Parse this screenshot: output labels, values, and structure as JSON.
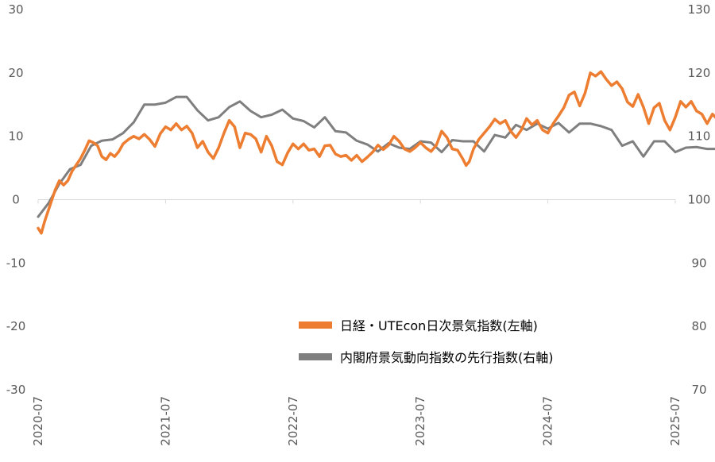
{
  "chart_data": {
    "type": "line",
    "title": "",
    "x_tick_labels": [
      "2020-07",
      "2021-07",
      "2022-07",
      "2023-07",
      "2024-07",
      "2025-07"
    ],
    "y_left": {
      "ticks": [
        30,
        20,
        10,
        0,
        -10,
        -20,
        -30
      ],
      "ylim": [
        -30,
        30
      ]
    },
    "y_right": {
      "ticks": [
        130,
        120,
        110,
        100,
        90,
        80,
        70
      ],
      "ylim": [
        70,
        130
      ]
    },
    "x_range_months": [
      0,
      60
    ],
    "grid": false,
    "legend_placement": "bottom-right",
    "series": [
      {
        "name": "日経・UTEcon日次景気指数(左軸)",
        "axis": "left",
        "color": "#ED7D31",
        "points": [
          {
            "x": 0.0,
            "y": -4.5
          },
          {
            "x": 0.3,
            "y": -5.3
          },
          {
            "x": 0.6,
            "y": -3.5
          },
          {
            "x": 1.0,
            "y": -1.5
          },
          {
            "x": 1.3,
            "y": 0.0
          },
          {
            "x": 1.6,
            "y": 1.5
          },
          {
            "x": 2.0,
            "y": 3.0
          },
          {
            "x": 2.4,
            "y": 2.3
          },
          {
            "x": 2.8,
            "y": 3.0
          },
          {
            "x": 3.2,
            "y": 4.5
          },
          {
            "x": 3.6,
            "y": 5.5
          },
          {
            "x": 4.0,
            "y": 6.5
          },
          {
            "x": 4.4,
            "y": 7.8
          },
          {
            "x": 4.8,
            "y": 9.3
          },
          {
            "x": 5.2,
            "y": 9.0
          },
          {
            "x": 5.6,
            "y": 8.5
          },
          {
            "x": 6.0,
            "y": 6.8
          },
          {
            "x": 6.4,
            "y": 6.3
          },
          {
            "x": 6.8,
            "y": 7.3
          },
          {
            "x": 7.2,
            "y": 6.8
          },
          {
            "x": 7.6,
            "y": 7.6
          },
          {
            "x": 8.0,
            "y": 8.8
          },
          {
            "x": 8.5,
            "y": 9.5
          },
          {
            "x": 9.0,
            "y": 10.0
          },
          {
            "x": 9.5,
            "y": 9.6
          },
          {
            "x": 10.0,
            "y": 10.3
          },
          {
            "x": 10.5,
            "y": 9.5
          },
          {
            "x": 11.0,
            "y": 8.4
          },
          {
            "x": 11.5,
            "y": 10.4
          },
          {
            "x": 12.0,
            "y": 11.5
          },
          {
            "x": 12.5,
            "y": 11.0
          },
          {
            "x": 13.0,
            "y": 12.0
          },
          {
            "x": 13.5,
            "y": 11.0
          },
          {
            "x": 14.0,
            "y": 11.6
          },
          {
            "x": 14.5,
            "y": 10.5
          },
          {
            "x": 15.0,
            "y": 8.2
          },
          {
            "x": 15.5,
            "y": 9.2
          },
          {
            "x": 16.0,
            "y": 7.5
          },
          {
            "x": 16.5,
            "y": 6.5
          },
          {
            "x": 17.0,
            "y": 8.2
          },
          {
            "x": 17.5,
            "y": 10.5
          },
          {
            "x": 18.0,
            "y": 12.5
          },
          {
            "x": 18.5,
            "y": 11.5
          },
          {
            "x": 19.0,
            "y": 8.2
          },
          {
            "x": 19.5,
            "y": 10.5
          },
          {
            "x": 20.0,
            "y": 10.3
          },
          {
            "x": 20.5,
            "y": 9.6
          },
          {
            "x": 21.0,
            "y": 7.5
          },
          {
            "x": 21.5,
            "y": 10.0
          },
          {
            "x": 22.0,
            "y": 8.5
          },
          {
            "x": 22.5,
            "y": 6.0
          },
          {
            "x": 23.0,
            "y": 5.5
          },
          {
            "x": 23.5,
            "y": 7.4
          },
          {
            "x": 24.0,
            "y": 8.8
          },
          {
            "x": 24.5,
            "y": 8.0
          },
          {
            "x": 25.0,
            "y": 8.8
          },
          {
            "x": 25.5,
            "y": 7.8
          },
          {
            "x": 26.0,
            "y": 8.0
          },
          {
            "x": 26.5,
            "y": 6.8
          },
          {
            "x": 27.0,
            "y": 8.5
          },
          {
            "x": 27.5,
            "y": 8.6
          },
          {
            "x": 28.0,
            "y": 7.2
          },
          {
            "x": 28.5,
            "y": 6.8
          },
          {
            "x": 29.0,
            "y": 7.0
          },
          {
            "x": 29.5,
            "y": 6.2
          },
          {
            "x": 30.0,
            "y": 7.0
          },
          {
            "x": 30.5,
            "y": 6.0
          },
          {
            "x": 31.0,
            "y": 6.7
          },
          {
            "x": 31.5,
            "y": 7.5
          },
          {
            "x": 32.0,
            "y": 8.6
          },
          {
            "x": 32.5,
            "y": 7.9
          },
          {
            "x": 33.0,
            "y": 8.6
          },
          {
            "x": 33.5,
            "y": 10.0
          },
          {
            "x": 34.0,
            "y": 9.2
          },
          {
            "x": 34.5,
            "y": 8.0
          },
          {
            "x": 35.0,
            "y": 7.6
          },
          {
            "x": 35.5,
            "y": 8.2
          },
          {
            "x": 36.0,
            "y": 9.0
          },
          {
            "x": 36.5,
            "y": 8.2
          },
          {
            "x": 37.0,
            "y": 7.6
          },
          {
            "x": 37.5,
            "y": 8.6
          },
          {
            "x": 38.0,
            "y": 10.8
          },
          {
            "x": 38.5,
            "y": 9.8
          },
          {
            "x": 39.0,
            "y": 8.0
          },
          {
            "x": 39.5,
            "y": 7.8
          },
          {
            "x": 40.0,
            "y": 6.4
          },
          {
            "x": 40.3,
            "y": 5.4
          },
          {
            "x": 40.6,
            "y": 6.0
          },
          {
            "x": 41.0,
            "y": 8.0
          },
          {
            "x": 41.5,
            "y": 9.5
          },
          {
            "x": 42.0,
            "y": 10.5
          },
          {
            "x": 42.5,
            "y": 11.5
          },
          {
            "x": 43.0,
            "y": 12.7
          },
          {
            "x": 43.5,
            "y": 12.0
          },
          {
            "x": 44.0,
            "y": 12.5
          },
          {
            "x": 44.5,
            "y": 10.8
          },
          {
            "x": 45.0,
            "y": 9.8
          },
          {
            "x": 45.5,
            "y": 11.0
          },
          {
            "x": 46.0,
            "y": 12.8
          },
          {
            "x": 46.5,
            "y": 11.8
          },
          {
            "x": 47.0,
            "y": 12.5
          },
          {
            "x": 47.5,
            "y": 11.0
          },
          {
            "x": 48.0,
            "y": 10.5
          },
          {
            "x": 48.5,
            "y": 12.0
          },
          {
            "x": 49.0,
            "y": 13.2
          },
          {
            "x": 49.5,
            "y": 14.5
          },
          {
            "x": 50.0,
            "y": 16.5
          },
          {
            "x": 50.5,
            "y": 17.0
          },
          {
            "x": 51.0,
            "y": 14.8
          },
          {
            "x": 51.5,
            "y": 16.8
          },
          {
            "x": 52.0,
            "y": 20.0
          },
          {
            "x": 52.5,
            "y": 19.5
          },
          {
            "x": 53.0,
            "y": 20.2
          },
          {
            "x": 53.5,
            "y": 19.0
          },
          {
            "x": 54.0,
            "y": 18.0
          },
          {
            "x": 54.5,
            "y": 18.6
          },
          {
            "x": 55.0,
            "y": 17.5
          },
          {
            "x": 55.5,
            "y": 15.4
          },
          {
            "x": 56.0,
            "y": 14.7
          },
          {
            "x": 56.5,
            "y": 16.6
          },
          {
            "x": 57.0,
            "y": 14.6
          },
          {
            "x": 57.5,
            "y": 12.0
          },
          {
            "x": 58.0,
            "y": 14.5
          },
          {
            "x": 58.5,
            "y": 15.2
          },
          {
            "x": 59.0,
            "y": 12.5
          },
          {
            "x": 59.5,
            "y": 11.0
          },
          {
            "x": 60.0,
            "y": 13.0
          },
          {
            "x": 60.5,
            "y": 15.5
          },
          {
            "x": 61.0,
            "y": 14.6
          },
          {
            "x": 61.5,
            "y": 15.5
          },
          {
            "x": 62.0,
            "y": 14.0
          },
          {
            "x": 62.5,
            "y": 13.5
          },
          {
            "x": 63.0,
            "y": 12.0
          },
          {
            "x": 63.5,
            "y": 13.5
          },
          {
            "x": 64.0,
            "y": 12.6
          },
          {
            "x": 64.5,
            "y": 12.0
          },
          {
            "x": 65.0,
            "y": 11.5
          },
          {
            "x": 65.5,
            "y": 13.2
          },
          {
            "x": 66.0,
            "y": 14.5
          },
          {
            "x": 66.5,
            "y": 12.5
          },
          {
            "x": 67.0,
            "y": 10.5
          },
          {
            "x": 67.5,
            "y": 6.5
          },
          {
            "x": 68.0,
            "y": 3.5
          },
          {
            "x": 68.5,
            "y": 5.0
          },
          {
            "x": 69.0,
            "y": 6.5
          },
          {
            "x": 69.5,
            "y": 6.2
          },
          {
            "x": 70.0,
            "y": 8.0
          },
          {
            "x": 70.5,
            "y": 8.5
          },
          {
            "x": 71.0,
            "y": 10.0
          },
          {
            "x": 71.5,
            "y": 11.8
          },
          {
            "x": 72.0,
            "y": 11.0
          },
          {
            "x": 72.5,
            "y": 11.6
          },
          {
            "x": 72.8,
            "y": 11.2
          }
        ]
      },
      {
        "name": "内閣府景気動向指数の先行指数(右軸)",
        "axis": "right",
        "color": "#7F7F7F",
        "points": [
          {
            "x": 0,
            "y": 97.3
          },
          {
            "x": 1,
            "y": 99.5
          },
          {
            "x": 2,
            "y": 102.5
          },
          {
            "x": 3,
            "y": 104.8
          },
          {
            "x": 4,
            "y": 105.5
          },
          {
            "x": 5,
            "y": 108.5
          },
          {
            "x": 6,
            "y": 109.3
          },
          {
            "x": 7,
            "y": 109.5
          },
          {
            "x": 8,
            "y": 110.5
          },
          {
            "x": 9,
            "y": 112.2
          },
          {
            "x": 10,
            "y": 115.0
          },
          {
            "x": 11,
            "y": 115.0
          },
          {
            "x": 12,
            "y": 115.3
          },
          {
            "x": 13,
            "y": 116.2
          },
          {
            "x": 14,
            "y": 116.2
          },
          {
            "x": 15,
            "y": 114.1
          },
          {
            "x": 16,
            "y": 112.5
          },
          {
            "x": 17,
            "y": 113.0
          },
          {
            "x": 18,
            "y": 114.6
          },
          {
            "x": 19,
            "y": 115.5
          },
          {
            "x": 20,
            "y": 114.0
          },
          {
            "x": 21,
            "y": 113.0
          },
          {
            "x": 22,
            "y": 113.4
          },
          {
            "x": 23,
            "y": 114.2
          },
          {
            "x": 24,
            "y": 112.8
          },
          {
            "x": 25,
            "y": 112.4
          },
          {
            "x": 26,
            "y": 111.4
          },
          {
            "x": 27,
            "y": 113.0
          },
          {
            "x": 28,
            "y": 110.8
          },
          {
            "x": 29,
            "y": 110.6
          },
          {
            "x": 30,
            "y": 109.3
          },
          {
            "x": 31,
            "y": 108.7
          },
          {
            "x": 32,
            "y": 107.6
          },
          {
            "x": 33,
            "y": 108.9
          },
          {
            "x": 34,
            "y": 108.2
          },
          {
            "x": 35,
            "y": 108.0
          },
          {
            "x": 36,
            "y": 109.2
          },
          {
            "x": 37,
            "y": 109.0
          },
          {
            "x": 38,
            "y": 107.5
          },
          {
            "x": 39,
            "y": 109.4
          },
          {
            "x": 40,
            "y": 109.2
          },
          {
            "x": 41,
            "y": 109.2
          },
          {
            "x": 42,
            "y": 107.6
          },
          {
            "x": 43,
            "y": 110.2
          },
          {
            "x": 44,
            "y": 109.8
          },
          {
            "x": 45,
            "y": 111.8
          },
          {
            "x": 46,
            "y": 111.0
          },
          {
            "x": 47,
            "y": 112.0
          },
          {
            "x": 48,
            "y": 111.2
          },
          {
            "x": 49,
            "y": 112.1
          },
          {
            "x": 50,
            "y": 110.6
          },
          {
            "x": 51,
            "y": 112.0
          },
          {
            "x": 52,
            "y": 112.0
          },
          {
            "x": 53,
            "y": 111.6
          },
          {
            "x": 54,
            "y": 111.0
          },
          {
            "x": 55,
            "y": 108.5
          },
          {
            "x": 56,
            "y": 109.2
          },
          {
            "x": 57,
            "y": 106.8
          },
          {
            "x": 58,
            "y": 109.2
          },
          {
            "x": 59,
            "y": 109.2
          },
          {
            "x": 60,
            "y": 107.5
          },
          {
            "x": 61,
            "y": 108.2
          },
          {
            "x": 62,
            "y": 108.3
          },
          {
            "x": 63,
            "y": 108.0
          },
          {
            "x": 64,
            "y": 108.0
          },
          {
            "x": 65,
            "y": 104.2
          },
          {
            "x": 66,
            "y": 104.8
          }
        ]
      }
    ]
  }
}
